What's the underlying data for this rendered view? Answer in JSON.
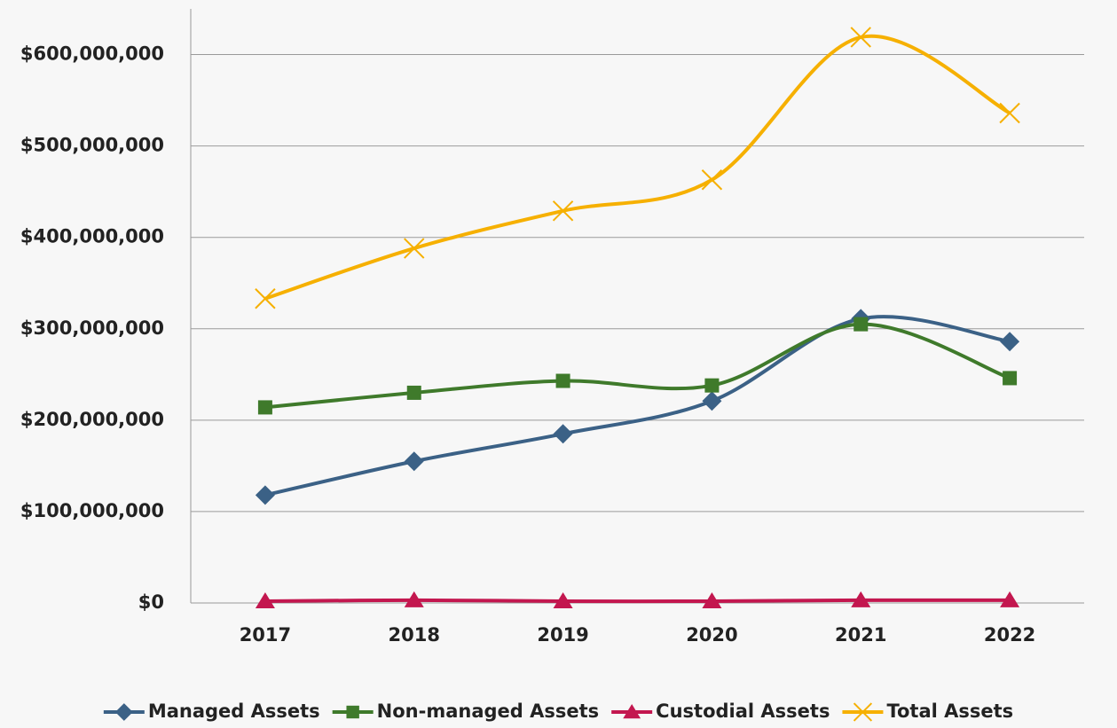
{
  "chart_data": {
    "type": "line",
    "categories": [
      "2017",
      "2018",
      "2019",
      "2020",
      "2021",
      "2022"
    ],
    "series": [
      {
        "name": "Managed Assets",
        "color": "#3b6186",
        "marker": "diamond",
        "values": [
          118000000,
          155000000,
          185000000,
          221000000,
          311000000,
          286000000
        ]
      },
      {
        "name": "Non-managed Assets",
        "color": "#3f7a2b",
        "marker": "square",
        "values": [
          214000000,
          230000000,
          243000000,
          238000000,
          305000000,
          246000000
        ]
      },
      {
        "name": "Custodial Assets",
        "color": "#c3174f",
        "marker": "triangle",
        "values": [
          2000000,
          3000000,
          2000000,
          2000000,
          3000000,
          3000000
        ]
      },
      {
        "name": "Total Assets",
        "color": "#f6b000",
        "marker": "x",
        "values": [
          333000000,
          388000000,
          429000000,
          463000000,
          619000000,
          536000000
        ]
      }
    ],
    "ylim": [
      0,
      650000000
    ],
    "yticks": [
      {
        "value": 0,
        "label": "$0"
      },
      {
        "value": 100000000,
        "label": "$100,000,000"
      },
      {
        "value": 200000000,
        "label": "$200,000,000"
      },
      {
        "value": 300000000,
        "label": "$300,000,000"
      },
      {
        "value": 400000000,
        "label": "$400,000,000"
      },
      {
        "value": 500000000,
        "label": "$500,000,000"
      },
      {
        "value": 600000000,
        "label": "$600,000,000"
      }
    ],
    "grid": true,
    "smooth": true,
    "legend": "bottom"
  }
}
